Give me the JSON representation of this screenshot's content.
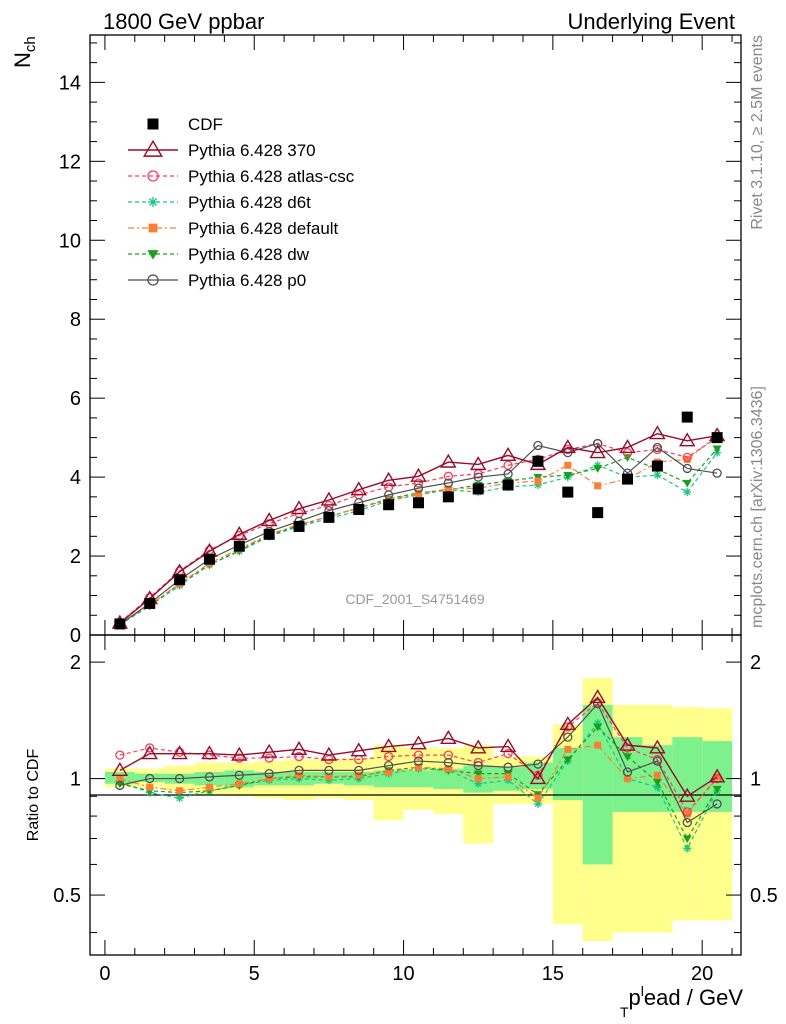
{
  "header": {
    "left": "1800 GeV ppbar",
    "right": "Underlying Event",
    "analysis": "CDF_2001_S4751469",
    "side_top": "Rivet 3.1.10, ≥ 2.5M events",
    "side_bottom": "mcplots.cern.ch [arXiv:1306.3436]"
  },
  "chart_data": [
    {
      "type": "scatter",
      "panel": "main",
      "ylabel_main": "N",
      "ylabel_sub": "ch",
      "xlim": [
        -0.5,
        21.3
      ],
      "ylim": [
        0,
        15.2
      ],
      "yticks": [
        "0",
        "2",
        "4",
        "6",
        "8",
        "10",
        "12",
        "14"
      ],
      "x": [
        0.5,
        1.5,
        2.5,
        3.5,
        4.5,
        5.5,
        6.5,
        7.5,
        8.5,
        9.5,
        10.5,
        11.5,
        12.5,
        13.5,
        14.5,
        15.5,
        16.5,
        17.5,
        18.5,
        19.5,
        20.5
      ],
      "series": [
        {
          "name": "CDF",
          "color": "#000000",
          "values": [
            0.28,
            0.8,
            1.4,
            1.92,
            2.25,
            2.55,
            2.75,
            2.98,
            3.18,
            3.3,
            3.35,
            3.5,
            3.7,
            3.8,
            4.4,
            3.62,
            3.1,
            3.95,
            4.28,
            5.52,
            5.0
          ]
        },
        {
          "name": "Pythia 6.428 370",
          "color": "#9b0a28",
          "values": [
            0.3,
            0.92,
            1.6,
            2.12,
            2.55,
            2.9,
            3.2,
            3.42,
            3.68,
            3.92,
            4.02,
            4.38,
            4.32,
            4.55,
            4.32,
            4.75,
            4.62,
            4.75,
            5.1,
            4.92,
            5.05
          ]
        },
        {
          "name": "Pythia 6.428 atlas-csc",
          "color": "#ff3c5a",
          "values": [
            0.32,
            0.95,
            1.62,
            2.15,
            2.52,
            2.82,
            3.08,
            3.28,
            3.55,
            3.75,
            3.85,
            4.02,
            4.08,
            4.3,
            4.45,
            4.7,
            4.85,
            4.62,
            4.7,
            4.5,
            5.0
          ]
        },
        {
          "name": "Pythia 6.428 d6t",
          "color": "#19c87d",
          "values": [
            0.26,
            0.74,
            1.25,
            1.78,
            2.12,
            2.5,
            2.75,
            2.95,
            3.15,
            3.4,
            3.55,
            3.68,
            3.62,
            3.75,
            3.8,
            4.0,
            4.3,
            4.0,
            4.05,
            3.62,
            4.62
          ]
        },
        {
          "name": "Pythia 6.428 default",
          "color": "#ff7d32",
          "values": [
            0.28,
            0.76,
            1.3,
            1.82,
            2.18,
            2.55,
            2.8,
            3.0,
            3.22,
            3.42,
            3.58,
            3.7,
            3.72,
            3.85,
            3.9,
            4.3,
            3.78,
            3.95,
            4.38,
            4.45,
            5.05
          ]
        },
        {
          "name": "Pythia 6.428 dw",
          "color": "#19a01e",
          "values": [
            0.27,
            0.74,
            1.3,
            1.78,
            2.14,
            2.52,
            2.78,
            3.0,
            3.22,
            3.45,
            3.6,
            3.68,
            3.8,
            3.9,
            4.0,
            4.05,
            4.22,
            4.5,
            4.2,
            3.85,
            4.72
          ]
        },
        {
          "name": "Pythia 6.428 p0",
          "color": "#505050",
          "values": [
            0.27,
            0.8,
            1.4,
            1.92,
            2.28,
            2.62,
            2.88,
            3.15,
            3.35,
            3.55,
            3.72,
            3.85,
            4.0,
            4.08,
            4.8,
            4.62,
            4.85,
            4.1,
            4.75,
            4.22,
            4.1
          ]
        }
      ]
    },
    {
      "type": "scatter",
      "panel": "ratio",
      "ylabel": "Ratio to CDF",
      "xlabel": "pₗead / GeV",
      "xlabel_main": "p",
      "xlabel_sub": "T",
      "xlabel_sup": "l",
      "xlabel_rest": "ead / GeV",
      "xlim": [
        -0.5,
        21.3
      ],
      "ylim": [
        0.35,
        2.35
      ],
      "yticks": [
        "0.5",
        "1",
        "2"
      ],
      "xticks": [
        "0",
        "5",
        "10",
        "15",
        "20"
      ],
      "band_color_inner": "#7df28c",
      "band_color_outer": "#ffff8c",
      "x": [
        0.5,
        1.5,
        2.5,
        3.5,
        4.5,
        5.5,
        6.5,
        7.5,
        8.5,
        9.5,
        10.5,
        11.5,
        12.5,
        13.5,
        14.5,
        15.5,
        16.5,
        17.5,
        18.5,
        19.5,
        20.5
      ],
      "bands_inner": [
        [
          0.97,
          1.04
        ],
        [
          0.98,
          1.03
        ],
        [
          0.97,
          1.03
        ],
        [
          0.96,
          1.04
        ],
        [
          0.95,
          1.05
        ],
        [
          0.96,
          1.04
        ],
        [
          0.96,
          1.04
        ],
        [
          0.97,
          1.04
        ],
        [
          0.96,
          1.04
        ],
        [
          0.95,
          1.05
        ],
        [
          0.95,
          1.05
        ],
        [
          0.94,
          1.06
        ],
        [
          0.92,
          1.08
        ],
        [
          0.93,
          1.07
        ],
        [
          0.94,
          1.1
        ],
        [
          0.88,
          1.2
        ],
        [
          0.6,
          1.55
        ],
        [
          0.82,
          1.28
        ],
        [
          0.82,
          1.22
        ],
        [
          0.82,
          1.28
        ],
        [
          0.82,
          1.25
        ]
      ],
      "bands_outer": [
        [
          0.95,
          1.06
        ],
        [
          0.95,
          1.06
        ],
        [
          0.93,
          1.08
        ],
        [
          0.91,
          1.1
        ],
        [
          0.9,
          1.1
        ],
        [
          0.89,
          1.11
        ],
        [
          0.88,
          1.12
        ],
        [
          0.89,
          1.12
        ],
        [
          0.88,
          1.13
        ],
        [
          0.78,
          1.22
        ],
        [
          0.83,
          1.2
        ],
        [
          0.81,
          1.2
        ],
        [
          0.68,
          1.22
        ],
        [
          0.86,
          1.14
        ],
        [
          0.86,
          1.14
        ],
        [
          0.42,
          1.38
        ],
        [
          0.38,
          1.82
        ],
        [
          0.4,
          1.55
        ],
        [
          0.4,
          1.55
        ],
        [
          0.43,
          1.53
        ],
        [
          0.43,
          1.52
        ]
      ],
      "series": [
        {
          "name": "Pythia 6.428 370",
          "values": [
            1.05,
            1.16,
            1.16,
            1.16,
            1.15,
            1.17,
            1.19,
            1.15,
            1.18,
            1.21,
            1.23,
            1.27,
            1.2,
            1.21,
            1.0,
            1.38,
            1.62,
            1.22,
            1.2,
            0.9,
            1.01
          ]
        },
        {
          "name": "Pythia 6.428 atlas-csc",
          "values": [
            1.15,
            1.2,
            1.17,
            1.15,
            1.13,
            1.13,
            1.14,
            1.12,
            1.12,
            1.14,
            1.15,
            1.15,
            1.1,
            1.16,
            1.02,
            1.36,
            1.57,
            1.2,
            1.12,
            0.82,
            1.0
          ]
        },
        {
          "name": "Pythia 6.428 d6t",
          "values": [
            0.98,
            0.92,
            0.89,
            0.93,
            0.96,
            0.99,
            1.0,
            0.99,
            1.0,
            1.03,
            1.06,
            1.05,
            0.97,
            0.99,
            0.86,
            1.11,
            1.39,
            1.0,
            0.95,
            0.66,
            0.93
          ]
        },
        {
          "name": "Pythia 6.428 default",
          "values": [
            1.0,
            0.95,
            0.93,
            0.95,
            0.97,
            1.0,
            1.02,
            1.01,
            1.02,
            1.04,
            1.07,
            1.06,
            1.0,
            1.01,
            0.89,
            1.19,
            1.22,
            1.0,
            1.02,
            0.81,
            1.01
          ]
        },
        {
          "name": "Pythia 6.428 dw",
          "values": [
            0.97,
            0.93,
            0.92,
            0.93,
            0.96,
            1.0,
            1.01,
            1.01,
            1.01,
            1.05,
            1.07,
            1.05,
            1.03,
            1.03,
            0.91,
            1.12,
            1.36,
            1.14,
            0.98,
            0.7,
            0.94
          ]
        },
        {
          "name": "Pythia 6.428 p0",
          "values": [
            0.96,
            1.0,
            1.0,
            1.01,
            1.02,
            1.03,
            1.05,
            1.05,
            1.05,
            1.08,
            1.11,
            1.1,
            1.08,
            1.07,
            1.09,
            1.28,
            1.56,
            1.04,
            1.11,
            0.77,
            0.86
          ]
        }
      ]
    }
  ]
}
